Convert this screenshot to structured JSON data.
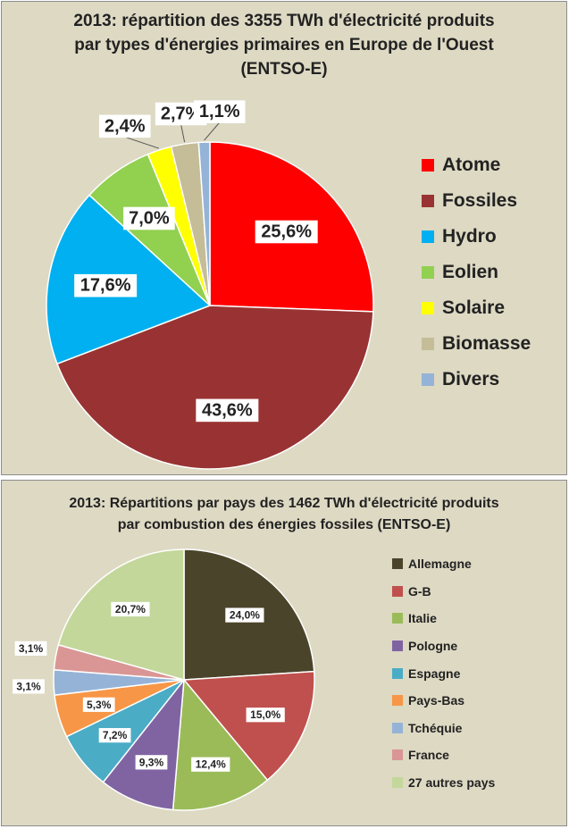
{
  "chart_data": [
    {
      "type": "pie",
      "title": "2013: répartition des 3355 TWh d'électricité produits par types d'énergies primaires en Europe de l'Ouest (ENTSO-E)",
      "title_lines": [
        "2013: répartition des 3355 TWh d'électricité produits",
        "par types d'énergies primaires en Europe de l'Ouest",
        "(ENTSO-E)"
      ],
      "legend_position": "right",
      "slices": [
        {
          "label": "Atome",
          "value": 25.6,
          "display": "25,6%",
          "color": "#ff0000"
        },
        {
          "label": "Fossiles",
          "value": 43.6,
          "display": "43,6%",
          "color": "#993333"
        },
        {
          "label": "Hydro",
          "value": 17.6,
          "display": "17,6%",
          "color": "#00b0f0"
        },
        {
          "label": "Eolien",
          "value": 7.0,
          "display": "7,0%",
          "color": "#92d050"
        },
        {
          "label": "Solaire",
          "value": 2.4,
          "display": "2,4%",
          "color": "#ffff00"
        },
        {
          "label": "Biomasse",
          "value": 2.7,
          "display": "2,7%",
          "color": "#c4bd97"
        },
        {
          "label": "Divers",
          "value": 1.1,
          "display": "1,1%",
          "color": "#95b3d7"
        }
      ]
    },
    {
      "type": "pie",
      "title": "2013: Répartitions par pays des 1462 TWh d'électricité produits par combustion des énergies fossiles (ENTSO-E)",
      "title_lines": [
        "2013: Répartitions par pays des 1462 TWh d'électricité produits",
        "par combustion des énergies fossiles (ENTSO-E)"
      ],
      "legend_position": "right",
      "slices": [
        {
          "label": "Allemagne",
          "value": 24.0,
          "display": "24,0%",
          "color": "#4a442a"
        },
        {
          "label": "G-B",
          "value": 15.0,
          "display": "15,0%",
          "color": "#c0504d"
        },
        {
          "label": "Italie",
          "value": 12.4,
          "display": "12,4%",
          "color": "#9bbb59"
        },
        {
          "label": "Pologne",
          "value": 9.3,
          "display": "9,3%",
          "color": "#8064a2"
        },
        {
          "label": "Espagne",
          "value": 7.2,
          "display": "7,2%",
          "color": "#4bacc6"
        },
        {
          "label": "Pays-Bas",
          "value": 5.3,
          "display": "5,3%",
          "color": "#f79646"
        },
        {
          "label": "Tchéquie",
          "value": 3.1,
          "display": "3,1%",
          "color": "#95b3d7"
        },
        {
          "label": "France",
          "value": 3.1,
          "display": "3,1%",
          "color": "#d99694"
        },
        {
          "label": "27 autres pays",
          "value": 20.7,
          "display": "20,7%",
          "color": "#c4d79b"
        }
      ]
    }
  ]
}
